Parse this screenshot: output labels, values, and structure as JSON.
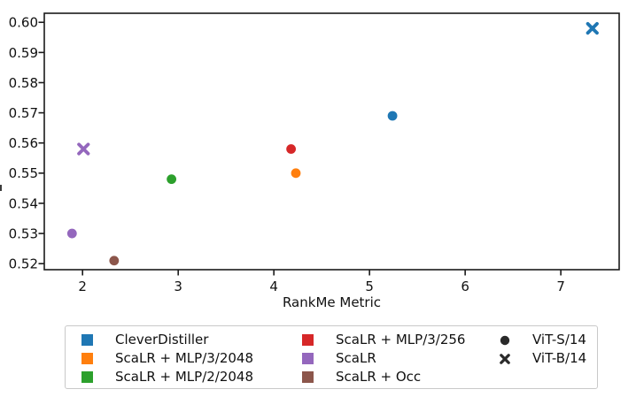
{
  "style": {
    "background": "#ffffff",
    "ink": "#1a1a1a",
    "marker_ink": "#2a2a2a",
    "legend_border": "#c9c9c9"
  },
  "chart_data": {
    "type": "scatter",
    "title": "",
    "xlabel": "RankMe Metric",
    "ylabel": "",
    "xlim": [
      1.6,
      7.61
    ],
    "ylim": [
      0.518,
      0.603
    ],
    "grid": false,
    "legend_position": "bottom",
    "x_ticks": [
      {
        "value": 2,
        "label": "2"
      },
      {
        "value": 3,
        "label": "3"
      },
      {
        "value": 4,
        "label": "4"
      },
      {
        "value": 5,
        "label": "5"
      },
      {
        "value": 6,
        "label": "6"
      },
      {
        "value": 7,
        "label": "7"
      }
    ],
    "y_ticks": [
      {
        "value": 0.52,
        "label": "0.52"
      },
      {
        "value": 0.53,
        "label": "0.53"
      },
      {
        "value": 0.54,
        "label": "0.54"
      },
      {
        "value": 0.55,
        "label": "0.55"
      },
      {
        "value": 0.56,
        "label": "0.56"
      },
      {
        "value": 0.57,
        "label": "0.57"
      },
      {
        "value": 0.58,
        "label": "0.58"
      },
      {
        "value": 0.59,
        "label": "0.59"
      },
      {
        "value": 0.6,
        "label": "0.60"
      }
    ],
    "series": [
      {
        "name": "CleverDistiller",
        "color": "#1f77b4",
        "points": [
          {
            "x": 5.24,
            "y": 0.569,
            "marker": "circle",
            "backbone": "ViT-S/14"
          },
          {
            "x": 7.33,
            "y": 0.598,
            "marker": "x",
            "backbone": "ViT-B/14"
          }
        ]
      },
      {
        "name": "ScaLR + MLP/3/2048",
        "color": "#ff7f0e",
        "points": [
          {
            "x": 4.23,
            "y": 0.55,
            "marker": "circle",
            "backbone": "ViT-S/14"
          }
        ]
      },
      {
        "name": "ScaLR + MLP/2/2048",
        "color": "#2ca02c",
        "points": [
          {
            "x": 2.93,
            "y": 0.548,
            "marker": "circle",
            "backbone": "ViT-S/14"
          }
        ]
      },
      {
        "name": "ScaLR + MLP/3/256",
        "color": "#d62728",
        "points": [
          {
            "x": 4.18,
            "y": 0.558,
            "marker": "circle",
            "backbone": "ViT-S/14"
          }
        ]
      },
      {
        "name": "ScaLR",
        "color": "#9467bd",
        "points": [
          {
            "x": 1.89,
            "y": 0.53,
            "marker": "circle",
            "backbone": "ViT-S/14"
          },
          {
            "x": 2.01,
            "y": 0.558,
            "marker": "x",
            "backbone": "ViT-B/14"
          }
        ]
      },
      {
        "name": "ScaLR + Occ",
        "color": "#8c564b",
        "points": [
          {
            "x": 2.33,
            "y": 0.521,
            "marker": "circle",
            "backbone": "ViT-S/14"
          }
        ]
      }
    ],
    "marker_legend": [
      {
        "label": "ViT-S/14",
        "marker": "circle"
      },
      {
        "label": "ViT-B/14",
        "marker": "x"
      }
    ]
  }
}
